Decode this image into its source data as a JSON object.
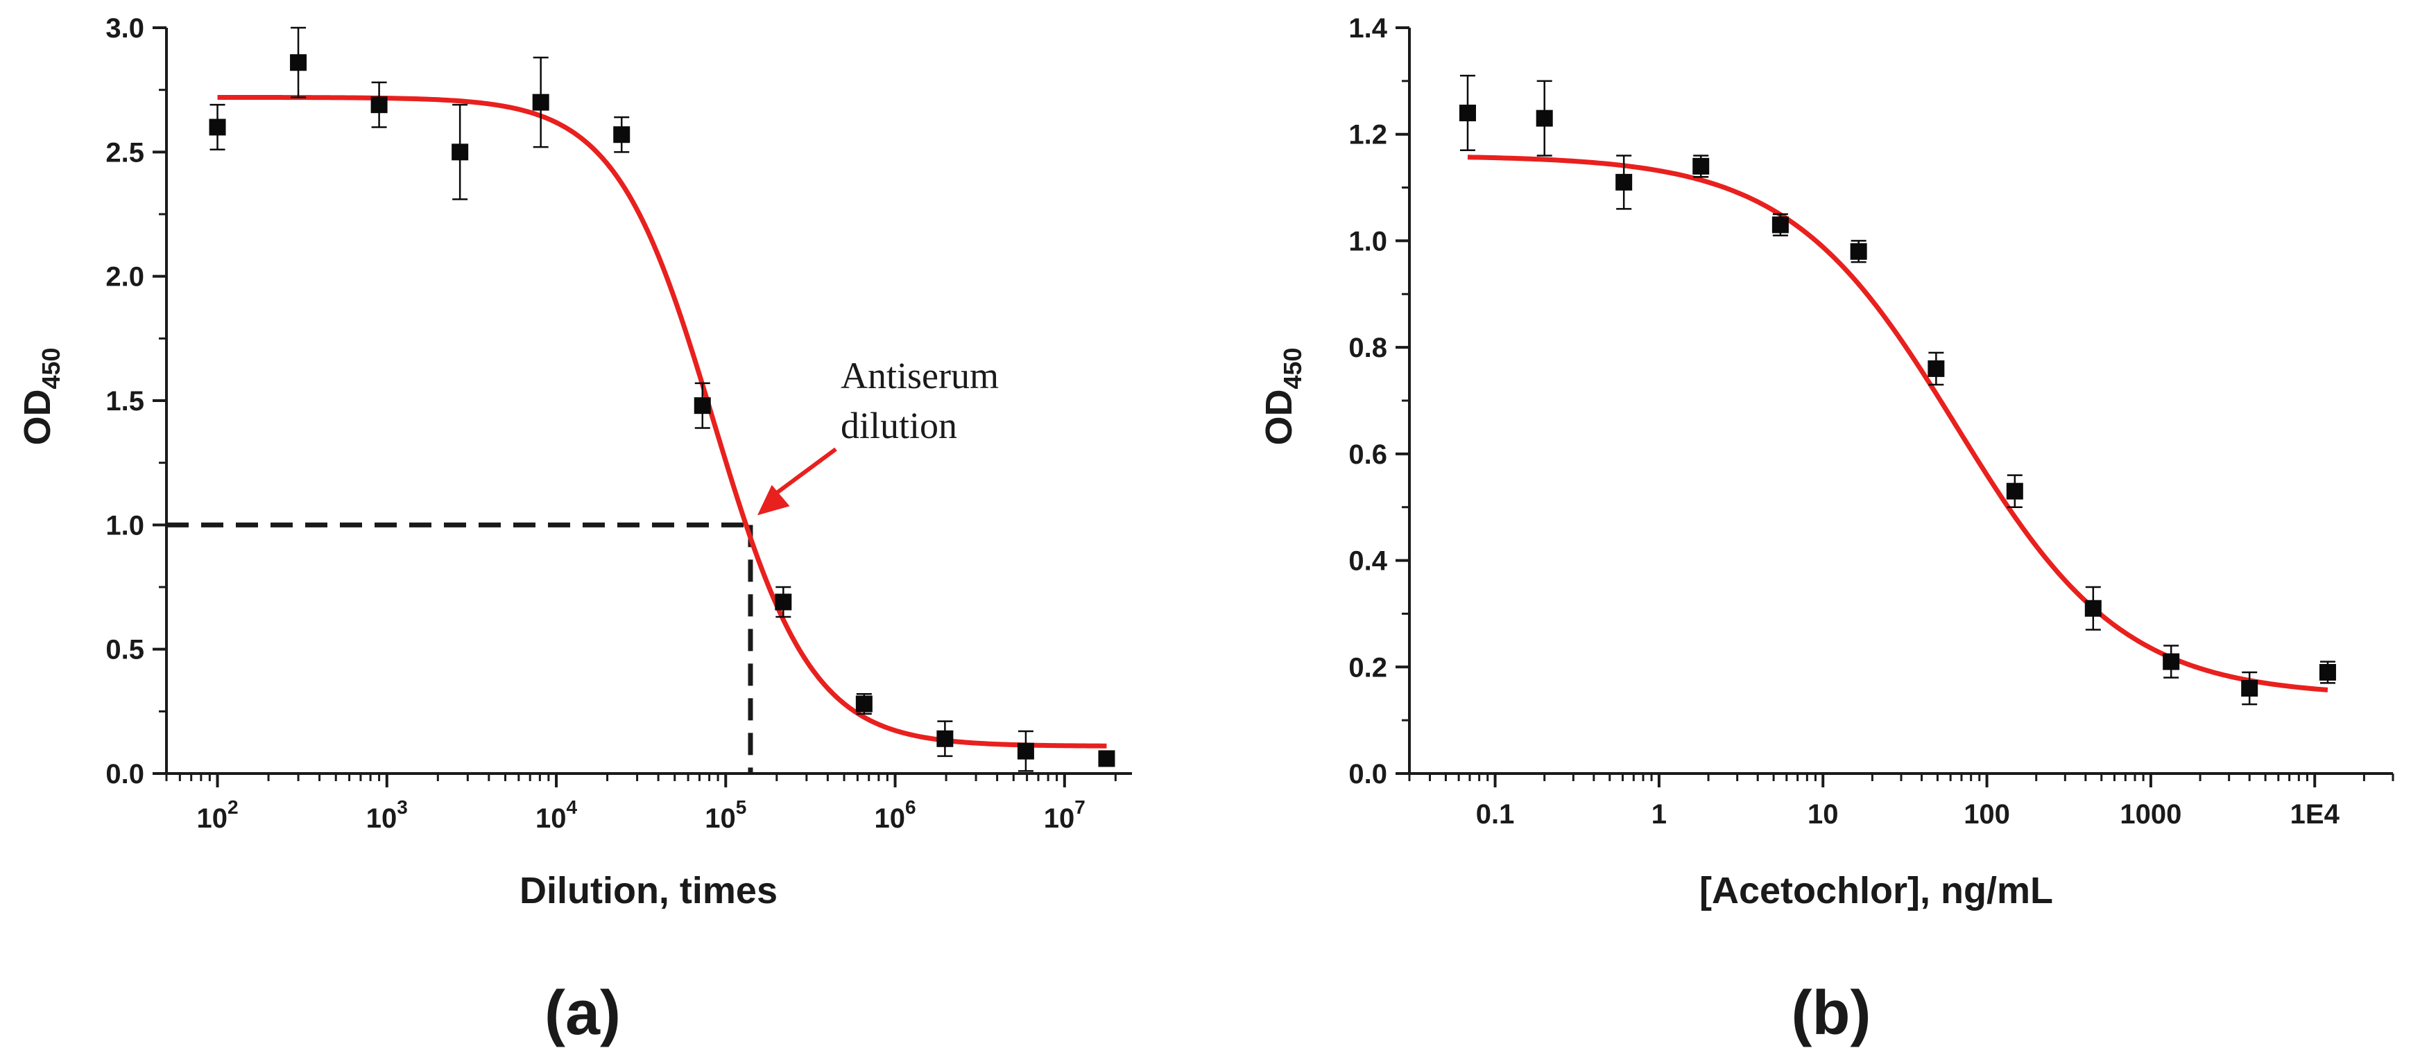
{
  "colors": {
    "fit": "#e8201e",
    "marker": "#0a0a0a",
    "axis": "#1a1a1a",
    "arrow": "#e8201e"
  },
  "chart_data": [
    {
      "panel": "(a)",
      "type": "scatter",
      "title": "",
      "xlabel": "Dilution, times",
      "ylabel": "OD",
      "ylabel_subscript": "450",
      "xscale": "log",
      "xlim": [
        50,
        25000000
      ],
      "ylim": [
        0,
        3.0
      ],
      "xticks": [
        {
          "value": 100,
          "base": "10",
          "exp": "2"
        },
        {
          "value": 1000,
          "base": "10",
          "exp": "3"
        },
        {
          "value": 10000,
          "base": "10",
          "exp": "4"
        },
        {
          "value": 100000,
          "base": "10",
          "exp": "5"
        },
        {
          "value": 1000000,
          "base": "10",
          "exp": "6"
        },
        {
          "value": 10000000,
          "base": "10",
          "exp": "7"
        }
      ],
      "yticks": [
        {
          "value": 0,
          "label": "0.0"
        },
        {
          "value": 0.5,
          "label": "0.5"
        },
        {
          "value": 1.0,
          "label": "1.0"
        },
        {
          "value": 1.5,
          "label": "1.5"
        },
        {
          "value": 2.0,
          "label": "2.0"
        },
        {
          "value": 2.5,
          "label": "2.5"
        },
        {
          "value": 3.0,
          "label": "3.0"
        }
      ],
      "series": [
        {
          "name": "measured",
          "x": [
            100,
            300,
            900,
            2700,
            8100,
            24300,
            72900,
            218700,
            656100,
            1968300,
            5904900,
            17714700
          ],
          "y": [
            2.6,
            2.86,
            2.69,
            2.5,
            2.7,
            2.57,
            1.48,
            0.69,
            0.28,
            0.14,
            0.09,
            0.06
          ],
          "err": [
            0.09,
            0.14,
            0.09,
            0.19,
            0.18,
            0.07,
            0.09,
            0.06,
            0.04,
            0.07,
            0.08,
            0.0
          ]
        }
      ],
      "fit": {
        "model": "4PL",
        "top": 2.72,
        "bottom": 0.11,
        "ec50": 85000,
        "slope": 1.5
      },
      "reference_lines": {
        "y": 1.0,
        "x": 140000,
        "style": "dashed"
      },
      "annotation": {
        "lines": [
          "Antiserum",
          "dilution"
        ],
        "points_to": {
          "x": 140000,
          "y": 1.0
        }
      }
    },
    {
      "panel": "(b)",
      "type": "scatter",
      "title": "",
      "xlabel": "[Acetochlor], ng/mL",
      "ylabel": "OD",
      "ylabel_subscript": "450",
      "xscale": "log",
      "xlim": [
        0.03,
        30000
      ],
      "ylim": [
        0,
        1.4
      ],
      "xticks": [
        {
          "value": 0.1,
          "label": "0.1"
        },
        {
          "value": 1,
          "label": "1"
        },
        {
          "value": 10,
          "label": "10"
        },
        {
          "value": 100,
          "label": "100"
        },
        {
          "value": 1000,
          "label": "1000"
        },
        {
          "value": 10000,
          "label": "1E4"
        }
      ],
      "yticks": [
        {
          "value": 0,
          "label": "0.0"
        },
        {
          "value": 0.2,
          "label": "0.2"
        },
        {
          "value": 0.4,
          "label": "0.4"
        },
        {
          "value": 0.6,
          "label": "0.6"
        },
        {
          "value": 0.8,
          "label": "0.8"
        },
        {
          "value": 1.0,
          "label": "1.0"
        },
        {
          "value": 1.2,
          "label": "1.2"
        },
        {
          "value": 1.4,
          "label": "1.4"
        }
      ],
      "series": [
        {
          "name": "measured",
          "x": [
            0.068,
            0.2,
            0.61,
            1.8,
            5.5,
            16.5,
            49,
            148,
            445,
            1330,
            4000,
            12000
          ],
          "y": [
            1.24,
            1.23,
            1.11,
            1.14,
            1.03,
            0.98,
            0.76,
            0.53,
            0.31,
            0.21,
            0.16,
            0.19
          ],
          "err": [
            0.07,
            0.07,
            0.05,
            0.02,
            0.02,
            0.02,
            0.03,
            0.03,
            0.04,
            0.03,
            0.03,
            0.02
          ]
        }
      ],
      "fit": {
        "model": "4PL",
        "top": 1.16,
        "bottom": 0.145,
        "ec50": 65,
        "slope": 0.85,
        "xmin": 0.068,
        "xmax": 12000
      }
    }
  ]
}
